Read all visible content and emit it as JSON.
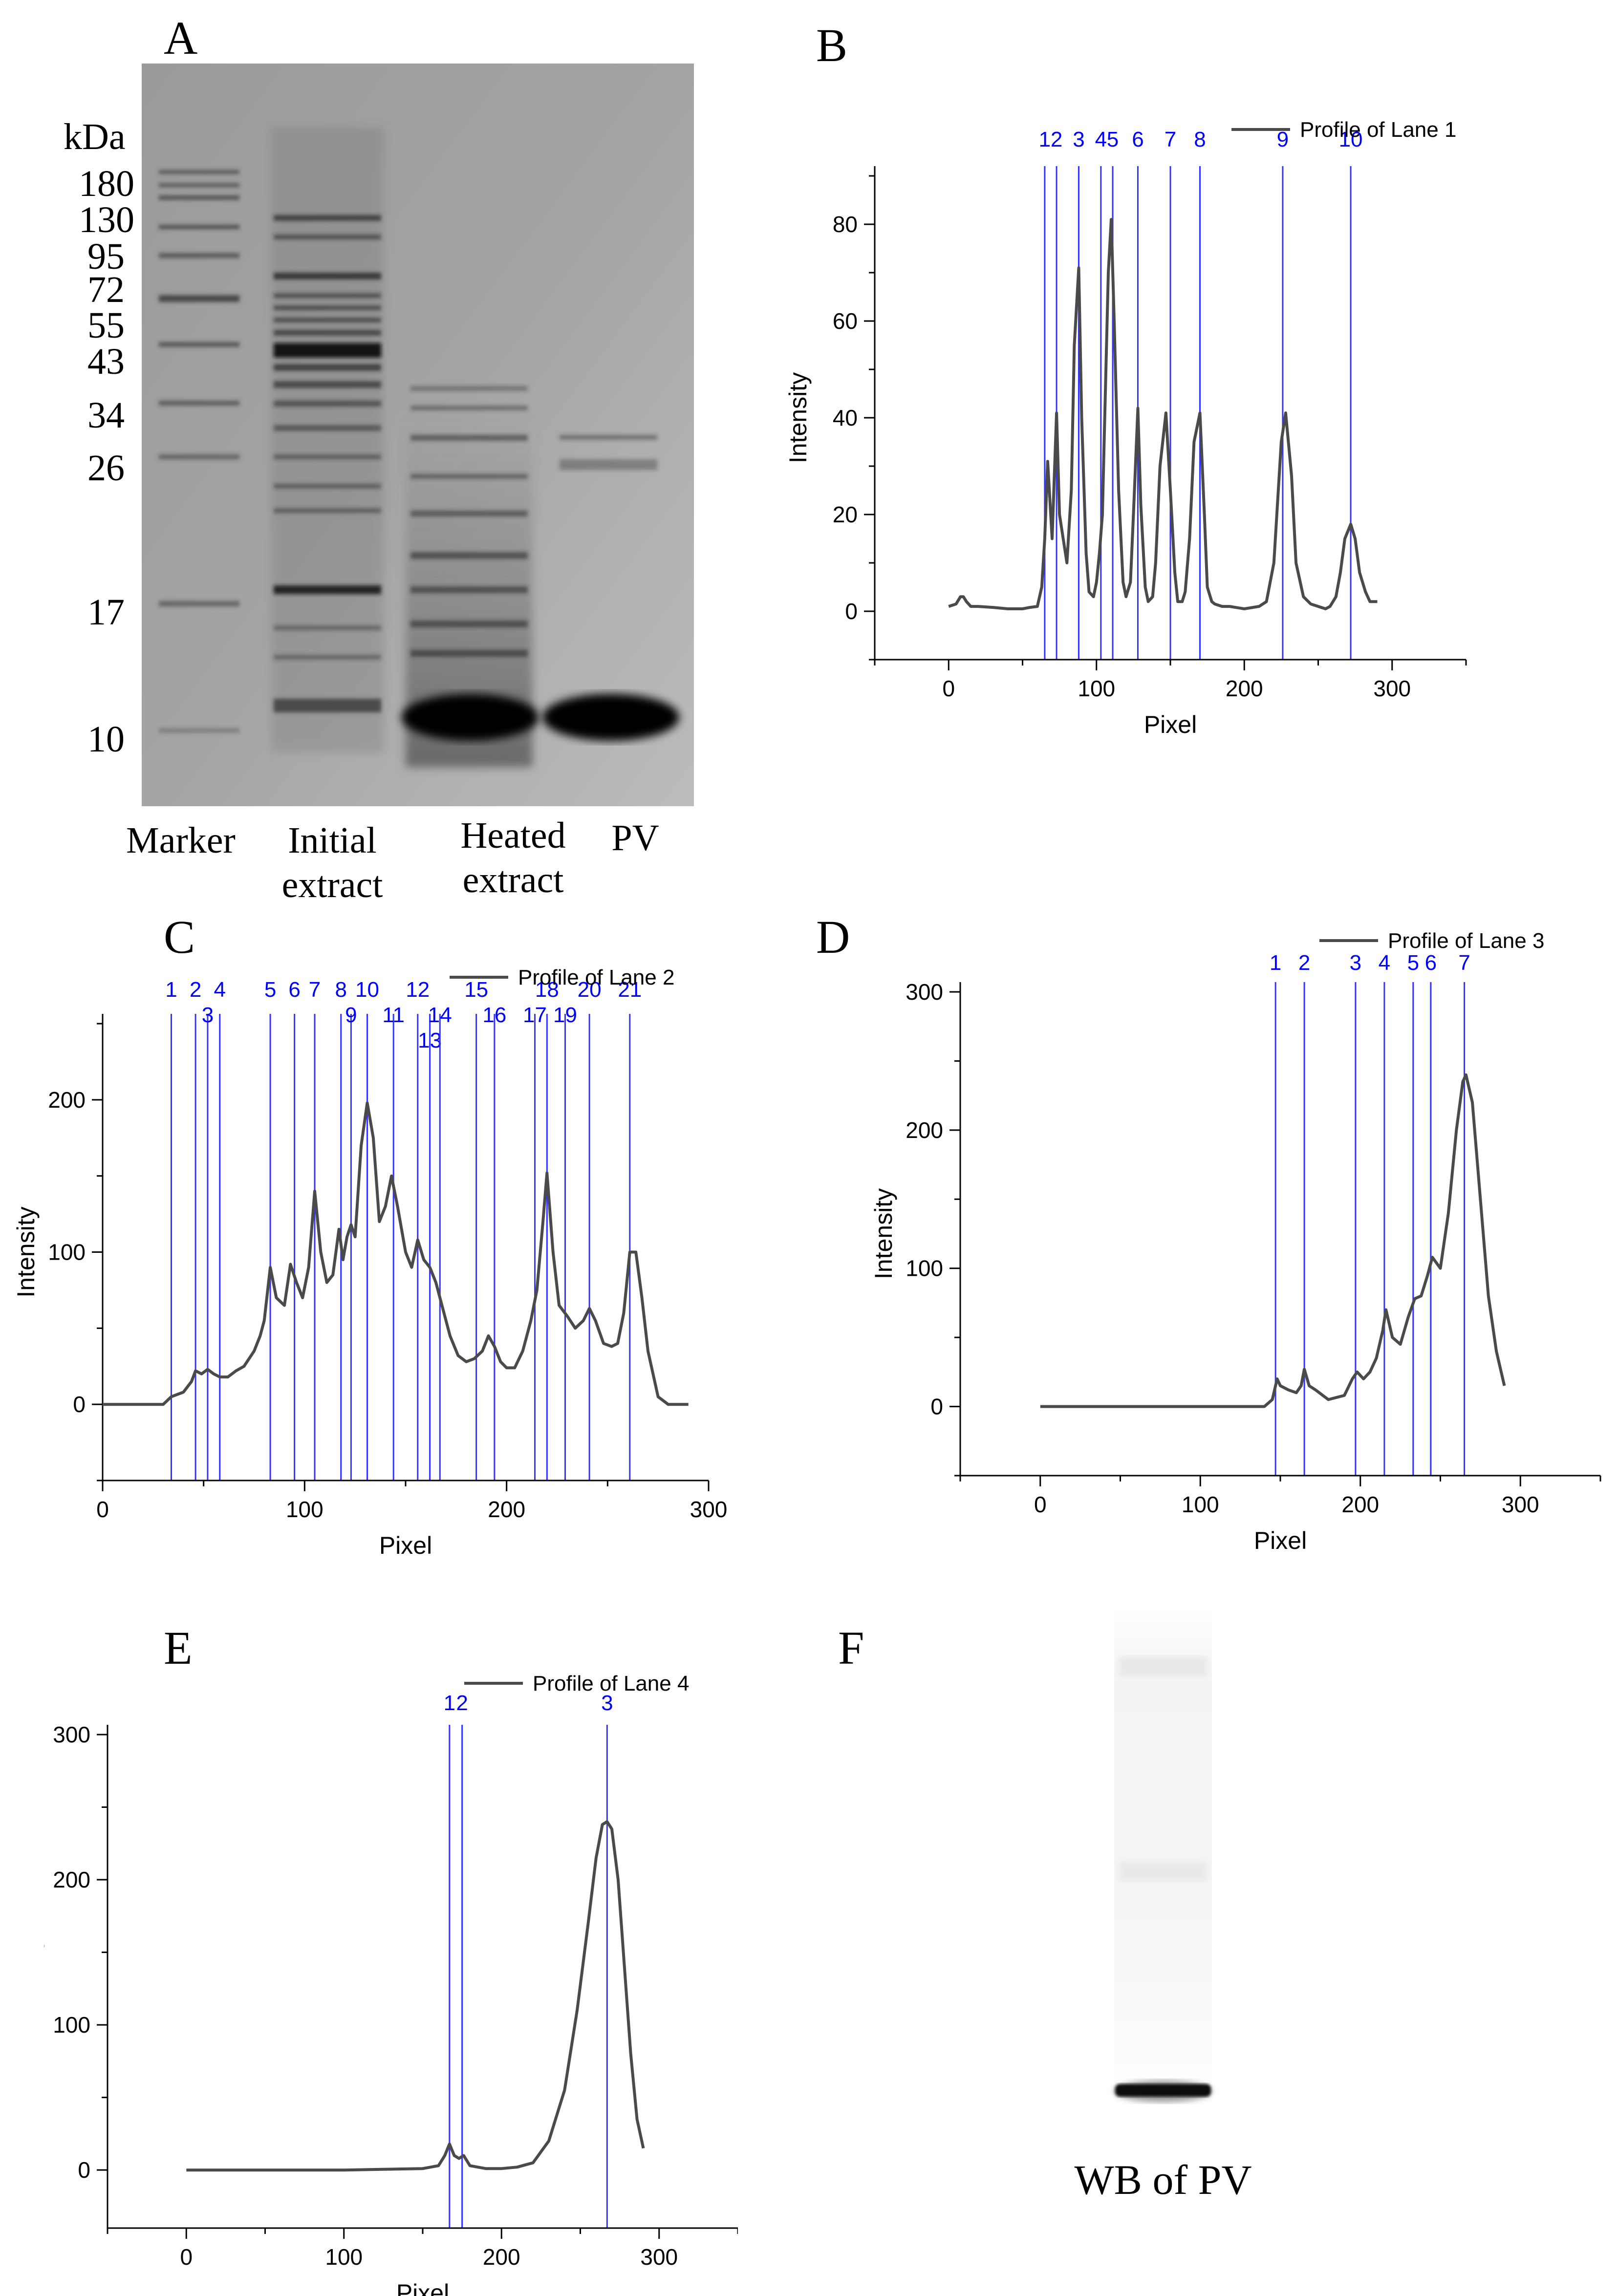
{
  "panels": {
    "A": {
      "letter": "A",
      "unit": "kDa",
      "marker_kda": [
        "180",
        "130",
        "95",
        "72",
        "55",
        "43",
        "34",
        "26",
        "17",
        "10"
      ],
      "lanes": [
        {
          "label_line1": "Marker",
          "label_line2": ""
        },
        {
          "label_line1": "Initial",
          "label_line2": "extract"
        },
        {
          "label_line1": "Heated",
          "label_line2": "extract"
        },
        {
          "label_line1": "PV",
          "label_line2": ""
        }
      ]
    },
    "B": {
      "letter": "B"
    },
    "C": {
      "letter": "C"
    },
    "D": {
      "letter": "D"
    },
    "E": {
      "letter": "E"
    },
    "F": {
      "letter": "F",
      "caption": "WB of PV"
    }
  },
  "colors": {
    "line": "#4a4a4a",
    "peak_marker": "#3333ff",
    "peak_text": "#0000ff"
  },
  "chart_data": [
    {
      "id": "B",
      "type": "line",
      "legend": "Profile of Lane 1",
      "legend_position": "top-right",
      "xlabel": "Pixel",
      "ylabel": "Intensity",
      "xlim": [
        -50,
        350
      ],
      "ylim": [
        -10,
        90
      ],
      "xticks": [
        0,
        100,
        200,
        300
      ],
      "yticks": [
        0,
        20,
        40,
        60,
        80
      ],
      "grid": false,
      "x": [
        0,
        5,
        8,
        10,
        12,
        15,
        20,
        30,
        40,
        50,
        55,
        60,
        63,
        65,
        67,
        70,
        73,
        75,
        78,
        80,
        83,
        85,
        88,
        90,
        93,
        95,
        98,
        100,
        102,
        104,
        106,
        108,
        110,
        112,
        115,
        118,
        120,
        123,
        125,
        128,
        130,
        133,
        135,
        138,
        140,
        143,
        147,
        150,
        153,
        155,
        158,
        160,
        163,
        166,
        170,
        173,
        175,
        178,
        180,
        185,
        190,
        200,
        210,
        215,
        220,
        225,
        228,
        232,
        235,
        240,
        245,
        250,
        255,
        258,
        262,
        265,
        268,
        272,
        275,
        278,
        282,
        285,
        290
      ],
      "y": [
        1,
        1.5,
        3,
        3,
        2,
        1,
        1,
        0.8,
        0.5,
        0.5,
        0.8,
        1,
        5,
        15,
        31,
        15,
        41,
        20,
        14,
        10,
        25,
        55,
        71,
        40,
        12,
        4,
        3,
        6,
        12,
        20,
        45,
        70,
        81,
        60,
        25,
        6,
        3,
        6,
        20,
        42,
        22,
        5,
        2,
        3,
        10,
        30,
        41,
        25,
        8,
        2,
        2,
        4,
        15,
        35,
        41,
        20,
        5,
        2,
        1.5,
        1,
        1,
        0.5,
        1,
        2,
        10,
        35,
        41,
        28,
        10,
        3,
        1.5,
        1,
        0.5,
        1,
        3,
        8,
        15,
        18,
        15,
        8,
        4,
        2,
        2
      ],
      "peaks": [
        {
          "label": "1",
          "x": 65,
          "row": 1
        },
        {
          "label": "2",
          "x": 73,
          "row": 1
        },
        {
          "label": "3",
          "x": 88,
          "row": 1
        },
        {
          "label": "4",
          "x": 103,
          "row": 1
        },
        {
          "label": "5",
          "x": 111,
          "row": 1
        },
        {
          "label": "6",
          "x": 128,
          "row": 1
        },
        {
          "label": "7",
          "x": 150,
          "row": 1
        },
        {
          "label": "8",
          "x": 170,
          "row": 1
        },
        {
          "label": "9",
          "x": 226,
          "row": 1
        },
        {
          "label": "10",
          "x": 272,
          "row": 1
        }
      ]
    },
    {
      "id": "C",
      "type": "line",
      "legend": "Profile of Lane 2",
      "legend_position": "top-right",
      "xlabel": "Pixel",
      "ylabel": "Intensity",
      "xlim": [
        0,
        300
      ],
      "ylim": [
        -50,
        250
      ],
      "xticks": [
        0,
        100,
        200,
        300
      ],
      "yticks": [
        0,
        100,
        200
      ],
      "grid": false,
      "x": [
        0,
        10,
        20,
        30,
        34,
        40,
        44,
        46,
        49,
        52,
        55,
        58,
        62,
        66,
        70,
        75,
        78,
        80,
        83,
        86,
        90,
        93,
        96,
        99,
        102,
        105,
        108,
        111,
        114,
        117,
        119,
        121,
        123,
        125,
        128,
        131,
        134,
        137,
        140,
        143,
        146,
        150,
        153,
        156,
        159,
        162,
        165,
        168,
        172,
        176,
        180,
        184,
        188,
        191,
        194,
        197,
        200,
        204,
        208,
        212,
        215,
        218,
        220,
        223,
        226,
        230,
        234,
        238,
        241,
        244,
        248,
        252,
        255,
        258,
        261,
        264,
        267,
        270,
        275,
        280,
        290
      ],
      "y": [
        0,
        0,
        0,
        0,
        5,
        8,
        15,
        22,
        20,
        23,
        20,
        18,
        18,
        22,
        25,
        35,
        45,
        55,
        90,
        70,
        65,
        92,
        80,
        70,
        90,
        140,
        100,
        80,
        85,
        115,
        95,
        110,
        118,
        110,
        170,
        198,
        175,
        120,
        130,
        150,
        130,
        100,
        90,
        108,
        95,
        90,
        80,
        65,
        45,
        32,
        28,
        30,
        35,
        45,
        38,
        28,
        24,
        24,
        35,
        55,
        75,
        120,
        152,
        100,
        65,
        58,
        50,
        55,
        63,
        55,
        40,
        38,
        40,
        60,
        100,
        100,
        70,
        35,
        5,
        0,
        0
      ],
      "peaks": [
        {
          "label": "1",
          "x": 34,
          "row": 1
        },
        {
          "label": "2",
          "x": 46,
          "row": 1
        },
        {
          "label": "3",
          "x": 52,
          "row": 2
        },
        {
          "label": "4",
          "x": 58,
          "row": 1
        },
        {
          "label": "5",
          "x": 83,
          "row": 1
        },
        {
          "label": "6",
          "x": 95,
          "row": 1
        },
        {
          "label": "7",
          "x": 105,
          "row": 1
        },
        {
          "label": "8",
          "x": 118,
          "row": 1
        },
        {
          "label": "9",
          "x": 123,
          "row": 2
        },
        {
          "label": "10",
          "x": 131,
          "row": 1
        },
        {
          "label": "11",
          "x": 144,
          "row": 2
        },
        {
          "label": "12",
          "x": 156,
          "row": 1
        },
        {
          "label": "13",
          "x": 162,
          "row": 3
        },
        {
          "label": "14",
          "x": 167,
          "row": 2
        },
        {
          "label": "15",
          "x": 185,
          "row": 1
        },
        {
          "label": "16",
          "x": 194,
          "row": 2
        },
        {
          "label": "17",
          "x": 214,
          "row": 2
        },
        {
          "label": "18",
          "x": 220,
          "row": 1
        },
        {
          "label": "19",
          "x": 229,
          "row": 2
        },
        {
          "label": "20",
          "x": 241,
          "row": 1
        },
        {
          "label": "21",
          "x": 261,
          "row": 1
        }
      ]
    },
    {
      "id": "D",
      "type": "line",
      "legend": "Profile of Lane 3",
      "legend_position": "top-right",
      "xlabel": "Pixel",
      "ylabel": "Intensity",
      "xlim": [
        -50,
        350
      ],
      "ylim": [
        -50,
        300
      ],
      "xticks": [
        0,
        100,
        200,
        300
      ],
      "yticks": [
        0,
        100,
        200,
        300
      ],
      "grid": false,
      "x": [
        0,
        50,
        100,
        140,
        145,
        148,
        150,
        155,
        160,
        163,
        165,
        168,
        172,
        180,
        190,
        195,
        198,
        202,
        206,
        210,
        214,
        216,
        220,
        225,
        230,
        234,
        238,
        242,
        245,
        250,
        255,
        260,
        264,
        266,
        270,
        275,
        280,
        285,
        290
      ],
      "y": [
        0,
        0,
        0,
        0,
        5,
        20,
        15,
        12,
        10,
        15,
        27,
        15,
        12,
        5,
        8,
        20,
        25,
        20,
        25,
        35,
        55,
        70,
        50,
        45,
        65,
        78,
        80,
        95,
        108,
        100,
        140,
        200,
        235,
        240,
        220,
        150,
        80,
        40,
        15
      ],
      "peaks": [
        {
          "label": "1",
          "x": 147,
          "row": 1
        },
        {
          "label": "2",
          "x": 165,
          "row": 1
        },
        {
          "label": "3",
          "x": 197,
          "row": 1
        },
        {
          "label": "4",
          "x": 215,
          "row": 1
        },
        {
          "label": "5",
          "x": 233,
          "row": 1
        },
        {
          "label": "6",
          "x": 244,
          "row": 1
        },
        {
          "label": "7",
          "x": 265,
          "row": 1
        }
      ]
    },
    {
      "id": "E",
      "type": "line",
      "legend": "Profile of Lane 4",
      "legend_position": "top-right",
      "xlabel": "Pixel",
      "ylabel": "Intensity",
      "xlim": [
        -50,
        350
      ],
      "ylim": [
        -40,
        300
      ],
      "xticks": [
        0,
        100,
        200,
        300
      ],
      "yticks": [
        0,
        100,
        200,
        300
      ],
      "grid": false,
      "x": [
        0,
        50,
        100,
        150,
        160,
        164,
        167,
        170,
        173,
        176,
        180,
        190,
        200,
        210,
        220,
        230,
        240,
        248,
        255,
        260,
        264,
        267,
        270,
        274,
        278,
        282,
        286,
        290
      ],
      "y": [
        0,
        0,
        0,
        1,
        3,
        10,
        18,
        10,
        8,
        10,
        3,
        1,
        1,
        2,
        5,
        20,
        55,
        110,
        170,
        215,
        238,
        240,
        235,
        200,
        140,
        80,
        35,
        15
      ],
      "peaks": [
        {
          "label": "1",
          "x": 167,
          "row": 1
        },
        {
          "label": "2",
          "x": 175,
          "row": 1
        },
        {
          "label": "3",
          "x": 267,
          "row": 1
        }
      ]
    }
  ]
}
